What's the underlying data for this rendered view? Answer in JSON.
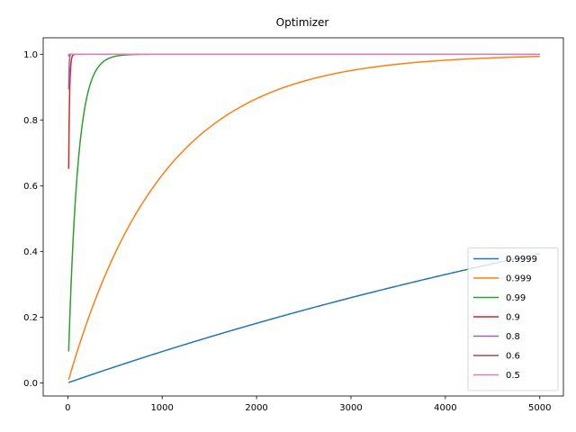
{
  "chart_data": {
    "type": "line",
    "title": "Optimizer",
    "xlabel": "",
    "ylabel": "",
    "xlim": [
      -260,
      5250
    ],
    "ylim": [
      -0.04,
      1.05
    ],
    "xticks": [
      0,
      1000,
      2000,
      3000,
      4000,
      5000
    ],
    "yticks": [
      0.0,
      0.2,
      0.4,
      0.6,
      0.8,
      1.0
    ],
    "xtick_labels": [
      "0",
      "1000",
      "2000",
      "3000",
      "4000",
      "5000"
    ],
    "ytick_labels": [
      "0.0",
      "0.2",
      "0.4",
      "0.6",
      "0.8",
      "1.0"
    ],
    "grid": false,
    "legend_position": "bottom-right",
    "x_range": [
      10,
      5000
    ],
    "series": [
      {
        "name": "0.9999",
        "beta": 0.9999,
        "color": "#1f77b4"
      },
      {
        "name": "0.999",
        "beta": 0.999,
        "color": "#ff7f0e"
      },
      {
        "name": "0.99",
        "beta": 0.99,
        "color": "#2ca02c"
      },
      {
        "name": "0.9",
        "beta": 0.9,
        "color": "#d62728"
      },
      {
        "name": "0.8",
        "beta": 0.8,
        "color": "#9467bd"
      },
      {
        "name": "0.6",
        "beta": 0.6,
        "color": "#8c564b"
      },
      {
        "name": "0.5",
        "beta": 0.5,
        "color": "#e377c2"
      }
    ]
  }
}
